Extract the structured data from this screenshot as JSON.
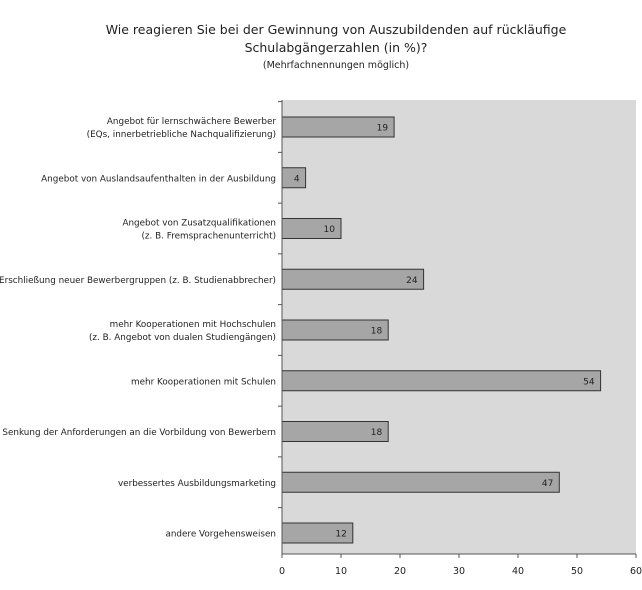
{
  "chart_data": {
    "type": "bar",
    "orientation": "horizontal",
    "title": "Wie reagieren Sie bei der Gewinnung von Auszubildenden auf rückläufige",
    "title_line2": "Schulabgängerzahlen (in %)?",
    "subtitle": "(Mehrfachnennungen möglich)",
    "categories": [
      [
        "Angebot für lernschwächere Bewerber",
        "(EQs, innerbetriebliche Nachqualifizierung)"
      ],
      [
        "Angebot von Auslandsaufenthalten in der Ausbildung"
      ],
      [
        "Angebot von Zusatzqualifikationen",
        "(z. B. Fremsprachenunterricht)"
      ],
      [
        "Erschließung neuer Bewerbergruppen (z. B. Studienabbrecher)"
      ],
      [
        "mehr Kooperationen mit Hochschulen",
        "(z. B. Angebot von dualen Studiengängen)"
      ],
      [
        "mehr Kooperationen mit Schulen"
      ],
      [
        "Senkung der Anforderungen an die Vorbildung von Bewerbern"
      ],
      [
        "verbessertes Ausbildungsmarketing"
      ],
      [
        "andere Vorgehensweisen"
      ]
    ],
    "values": [
      19,
      4,
      10,
      24,
      18,
      54,
      18,
      47,
      12
    ],
    "xlim": [
      0,
      60
    ],
    "xticks": [
      0,
      10,
      20,
      30,
      40,
      50,
      60
    ],
    "grid": false,
    "legend": "none",
    "colors": {
      "plot_background": "#d9d9d9",
      "bar_fill": "#a6a6a6",
      "bar_stroke": "#333333",
      "axis": "#555555",
      "text": "#222222"
    }
  }
}
